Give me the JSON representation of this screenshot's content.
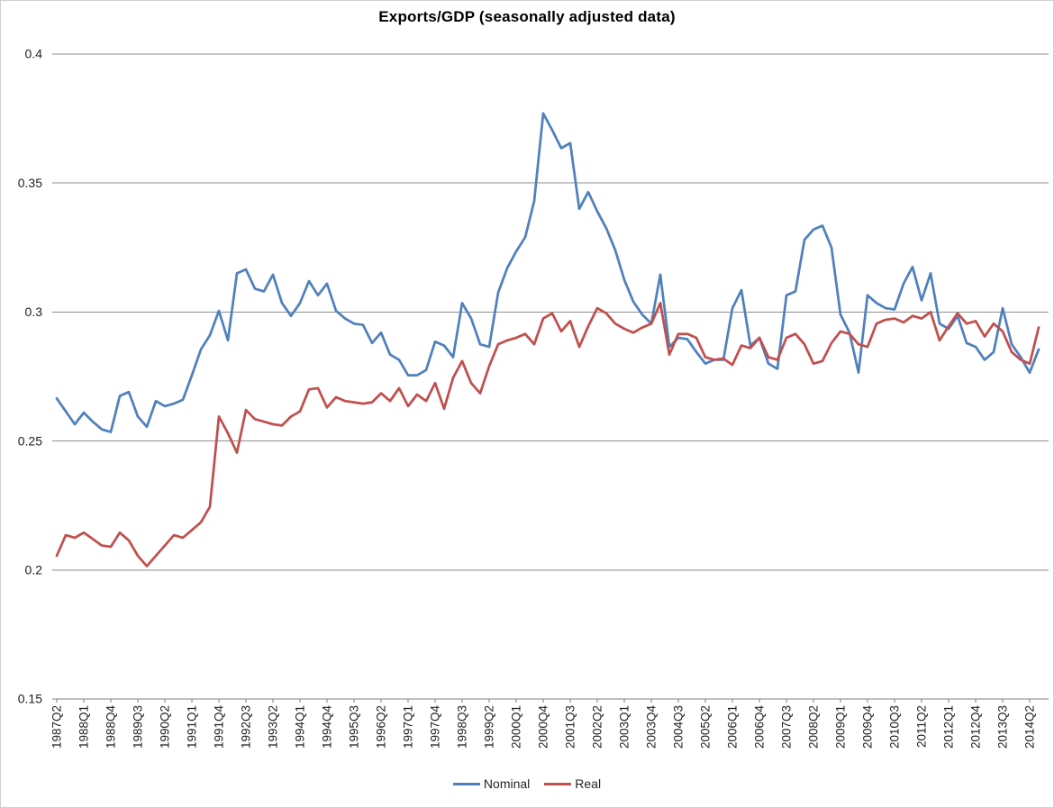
{
  "chart_data": {
    "type": "line",
    "title": "Exports/GDP  (seasonally adjusted data)",
    "ylabel": "",
    "xlabel": "",
    "ylim": [
      0.15,
      0.4
    ],
    "ytick_values": [
      0.4,
      0.35,
      0.3,
      0.25,
      0.2,
      0.15
    ],
    "ytick_labels": [
      "0.4",
      "0.35",
      "0.3",
      "0.25",
      "0.2",
      "0.15"
    ],
    "grid": true,
    "legend_position": "bottom",
    "x_label_every": 3,
    "x_label_rotation": -90,
    "categories": [
      "1987Q2",
      "1987Q3",
      "1987Q4",
      "1988Q1",
      "1988Q2",
      "1988Q3",
      "1988Q4",
      "1989Q1",
      "1989Q2",
      "1989Q3",
      "1989Q4",
      "1990Q1",
      "1990Q2",
      "1990Q3",
      "1990Q4",
      "1991Q1",
      "1991Q2",
      "1991Q3",
      "1991Q4",
      "1992Q1",
      "1992Q2",
      "1992Q3",
      "1992Q4",
      "1993Q1",
      "1993Q2",
      "1993Q3",
      "1993Q4",
      "1994Q1",
      "1994Q2",
      "1994Q3",
      "1994Q4",
      "1995Q1",
      "1995Q2",
      "1995Q3",
      "1995Q4",
      "1996Q1",
      "1996Q2",
      "1996Q3",
      "1996Q4",
      "1997Q1",
      "1997Q2",
      "1997Q3",
      "1997Q4",
      "1998Q1",
      "1998Q2",
      "1998Q3",
      "1998Q4",
      "1999Q1",
      "1999Q2",
      "1999Q3",
      "1999Q4",
      "2000Q1",
      "2000Q2",
      "2000Q3",
      "2000Q4",
      "2001Q1",
      "2001Q2",
      "2001Q3",
      "2001Q4",
      "2002Q1",
      "2002Q2",
      "2002Q3",
      "2002Q4",
      "2003Q1",
      "2003Q2",
      "2003Q3",
      "2003Q4",
      "2004Q1",
      "2004Q2",
      "2004Q3",
      "2004Q4",
      "2005Q1",
      "2005Q2",
      "2005Q3",
      "2005Q4",
      "2006Q1",
      "2006Q2",
      "2006Q3",
      "2006Q4",
      "2007Q1",
      "2007Q2",
      "2007Q3",
      "2007Q4",
      "2008Q1",
      "2008Q2",
      "2008Q3",
      "2008Q4",
      "2009Q1",
      "2009Q2",
      "2009Q3",
      "2009Q4",
      "2010Q1",
      "2010Q2",
      "2010Q3",
      "2010Q4",
      "2011Q1",
      "2011Q2",
      "2011Q3",
      "2011Q4",
      "2012Q1",
      "2012Q2",
      "2012Q3",
      "2012Q4",
      "2013Q1",
      "2013Q2",
      "2013Q3",
      "2013Q4",
      "2014Q1",
      "2014Q2",
      "2014Q3"
    ],
    "series": [
      {
        "name": "Nominal",
        "color": "#4F81BD",
        "values": [
          0.2665,
          0.2615,
          0.2565,
          0.261,
          0.2575,
          0.2545,
          0.2535,
          0.2675,
          0.269,
          0.2595,
          0.2555,
          0.2655,
          0.2635,
          0.2645,
          0.266,
          0.2755,
          0.2855,
          0.291,
          0.3005,
          0.289,
          0.315,
          0.3165,
          0.309,
          0.308,
          0.3145,
          0.3035,
          0.2985,
          0.3035,
          0.312,
          0.3065,
          0.311,
          0.3005,
          0.2975,
          0.2955,
          0.295,
          0.288,
          0.292,
          0.2835,
          0.2815,
          0.2755,
          0.2755,
          0.2775,
          0.2885,
          0.287,
          0.2825,
          0.3035,
          0.2975,
          0.2875,
          0.2865,
          0.3075,
          0.317,
          0.3235,
          0.329,
          0.343,
          0.377,
          0.3705,
          0.3635,
          0.3655,
          0.34,
          0.3465,
          0.339,
          0.3325,
          0.324,
          0.3125,
          0.304,
          0.299,
          0.2955,
          0.3145,
          0.2865,
          0.29,
          0.2895,
          0.2845,
          0.28,
          0.2815,
          0.2815,
          0.3015,
          0.3085,
          0.287,
          0.29,
          0.28,
          0.278,
          0.3065,
          0.308,
          0.328,
          0.332,
          0.3335,
          0.325,
          0.299,
          0.292,
          0.2765,
          0.3065,
          0.3035,
          0.3015,
          0.301,
          0.311,
          0.3175,
          0.3045,
          0.315,
          0.2955,
          0.2935,
          0.2985,
          0.288,
          0.2865,
          0.2815,
          0.2845,
          0.3015,
          0.2875,
          0.2825,
          0.2765,
          0.2855
        ]
      },
      {
        "name": "Real",
        "color": "#C0504D",
        "values": [
          0.2055,
          0.2135,
          0.2125,
          0.2145,
          0.212,
          0.2095,
          0.209,
          0.2145,
          0.2115,
          0.2055,
          0.2015,
          0.2055,
          0.2095,
          0.2135,
          0.2125,
          0.2155,
          0.2185,
          0.2245,
          0.2595,
          0.253,
          0.2455,
          0.262,
          0.2585,
          0.2575,
          0.2565,
          0.256,
          0.2595,
          0.2615,
          0.27,
          0.2705,
          0.263,
          0.267,
          0.2655,
          0.265,
          0.2645,
          0.265,
          0.2685,
          0.2655,
          0.2705,
          0.2635,
          0.268,
          0.2655,
          0.2725,
          0.2625,
          0.2745,
          0.281,
          0.2725,
          0.2685,
          0.279,
          0.2875,
          0.289,
          0.29,
          0.2915,
          0.2875,
          0.2975,
          0.2995,
          0.2925,
          0.2965,
          0.2865,
          0.2945,
          0.3015,
          0.2995,
          0.2955,
          0.2935,
          0.292,
          0.294,
          0.2955,
          0.3035,
          0.2835,
          0.2915,
          0.2915,
          0.29,
          0.2825,
          0.2815,
          0.282,
          0.2795,
          0.287,
          0.286,
          0.29,
          0.2825,
          0.2815,
          0.29,
          0.2915,
          0.2875,
          0.28,
          0.281,
          0.288,
          0.2925,
          0.2915,
          0.2875,
          0.2865,
          0.2955,
          0.297,
          0.2975,
          0.296,
          0.2985,
          0.2975,
          0.3,
          0.289,
          0.2945,
          0.2995,
          0.2955,
          0.2965,
          0.2905,
          0.2955,
          0.2925,
          0.2845,
          0.2815,
          0.28,
          0.294
        ]
      }
    ]
  },
  "styles": {
    "grid_color": "#8E8E8E",
    "axis_color": "#7F7F7F",
    "tick_color": "#7F7F7F",
    "text_color": "#1F1F1F",
    "border_color": "#CFCFCF",
    "background": "#FFFFFF"
  }
}
